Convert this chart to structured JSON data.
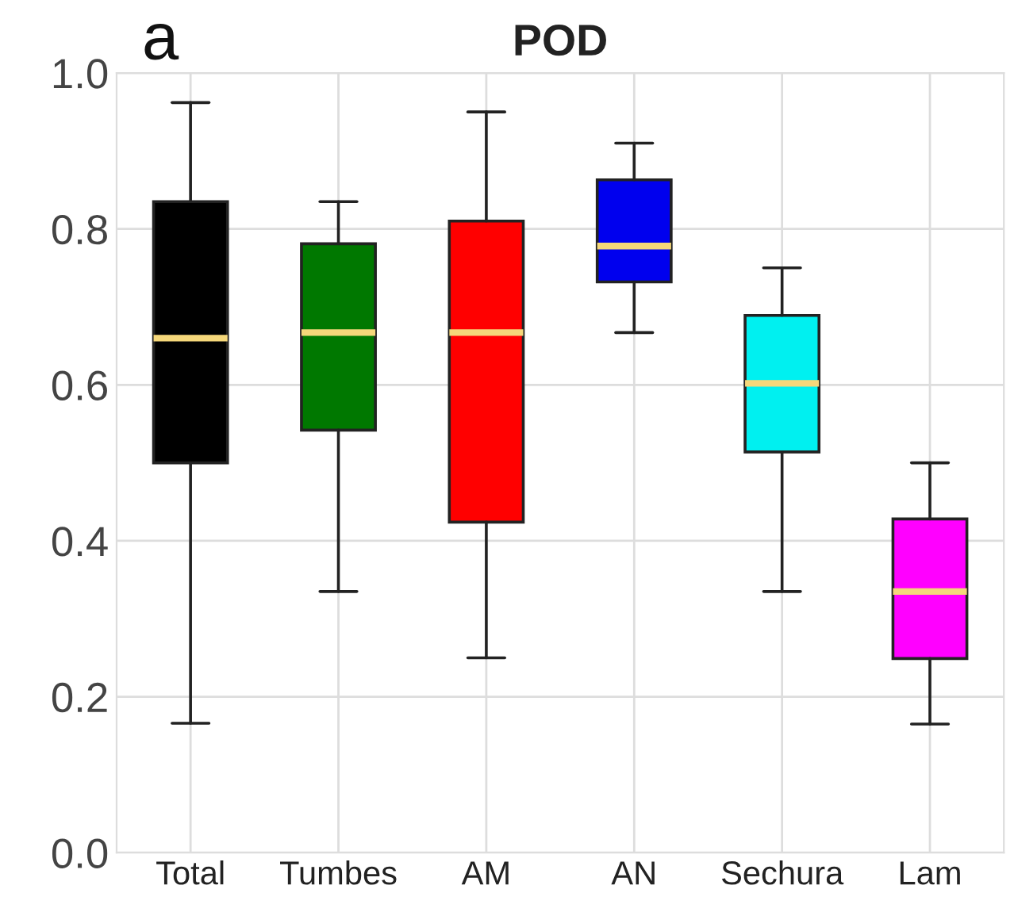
{
  "chart_data": {
    "type": "box",
    "title": "POD",
    "annotations": [
      "a"
    ],
    "categories": [
      "Total",
      "Tumbes",
      "AM",
      "AN",
      "Sechura",
      "Lam"
    ],
    "colors": [
      "#000000",
      "#007800",
      "#ff0000",
      "#0000ee",
      "#00f0f0",
      "#ff00ff"
    ],
    "boxes": [
      {
        "low": 0.166,
        "q1": 0.5,
        "median": 0.66,
        "q3": 0.835,
        "high": 0.962
      },
      {
        "low": 0.335,
        "q1": 0.542,
        "median": 0.667,
        "q3": 0.781,
        "high": 0.835
      },
      {
        "low": 0.25,
        "q1": 0.424,
        "median": 0.667,
        "q3": 0.81,
        "high": 0.95
      },
      {
        "low": 0.667,
        "q1": 0.732,
        "median": 0.778,
        "q3": 0.863,
        "high": 0.91
      },
      {
        "low": 0.335,
        "q1": 0.514,
        "median": 0.602,
        "q3": 0.689,
        "high": 0.75
      },
      {
        "low": 0.165,
        "q1": 0.249,
        "median": 0.335,
        "q3": 0.428,
        "high": 0.5
      }
    ],
    "ylim": [
      0,
      1
    ],
    "yticks": [
      {
        "value": 0,
        "label": "0.0"
      },
      0.2,
      0.4,
      0.6,
      0.8,
      {
        "value": 1,
        "label": "1.0"
      }
    ],
    "grid": true
  }
}
